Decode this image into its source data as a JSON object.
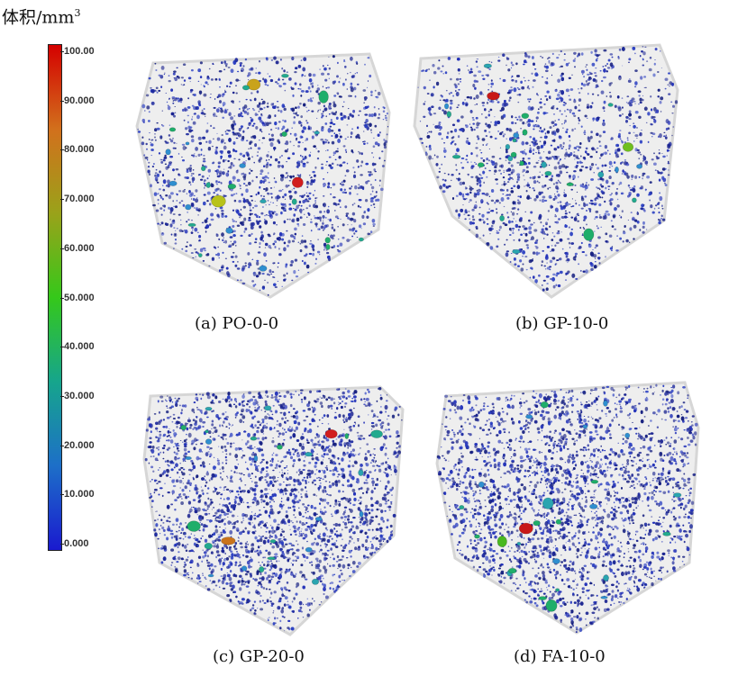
{
  "legend": {
    "title": "体积/mm",
    "title_superscript": "3",
    "ticks": [
      "100.00",
      "90.000",
      "80.000",
      "70.000",
      "60.000",
      "50.000",
      "40.000",
      "30.000",
      "20.000",
      "10.000",
      "0.000"
    ],
    "gradient_colors": [
      "#d40000",
      "#d2701c",
      "#9aa21a",
      "#35c81a",
      "#16a58c",
      "#1d6fc8",
      "#1a1acf"
    ]
  },
  "panels": [
    {
      "label": "(a) PO-0-0",
      "density": "medium",
      "large_pore_colors": [
        "#d11d1d",
        "#c9a31b",
        "#1fae6a",
        "#b8c21a"
      ]
    },
    {
      "label": "(b) GP-10-0",
      "density": "medium",
      "large_pore_colors": [
        "#c81818",
        "#1fae6a",
        "#6fbf1e"
      ]
    },
    {
      "label": "(c) GP-20-0",
      "density": "high",
      "large_pore_colors": [
        "#d11d1d",
        "#c9731b",
        "#1fae6a",
        "#22aa8e"
      ]
    },
    {
      "label": "(d) FA-10-0",
      "density": "high",
      "large_pore_colors": [
        "#c81818",
        "#1fae6a",
        "#2aa5b0",
        "#49b81f"
      ]
    }
  ],
  "colors": {
    "pore": "#1e2a9e",
    "specimen": "#eeeeee",
    "specimen_edge": "#d6d6d6"
  }
}
